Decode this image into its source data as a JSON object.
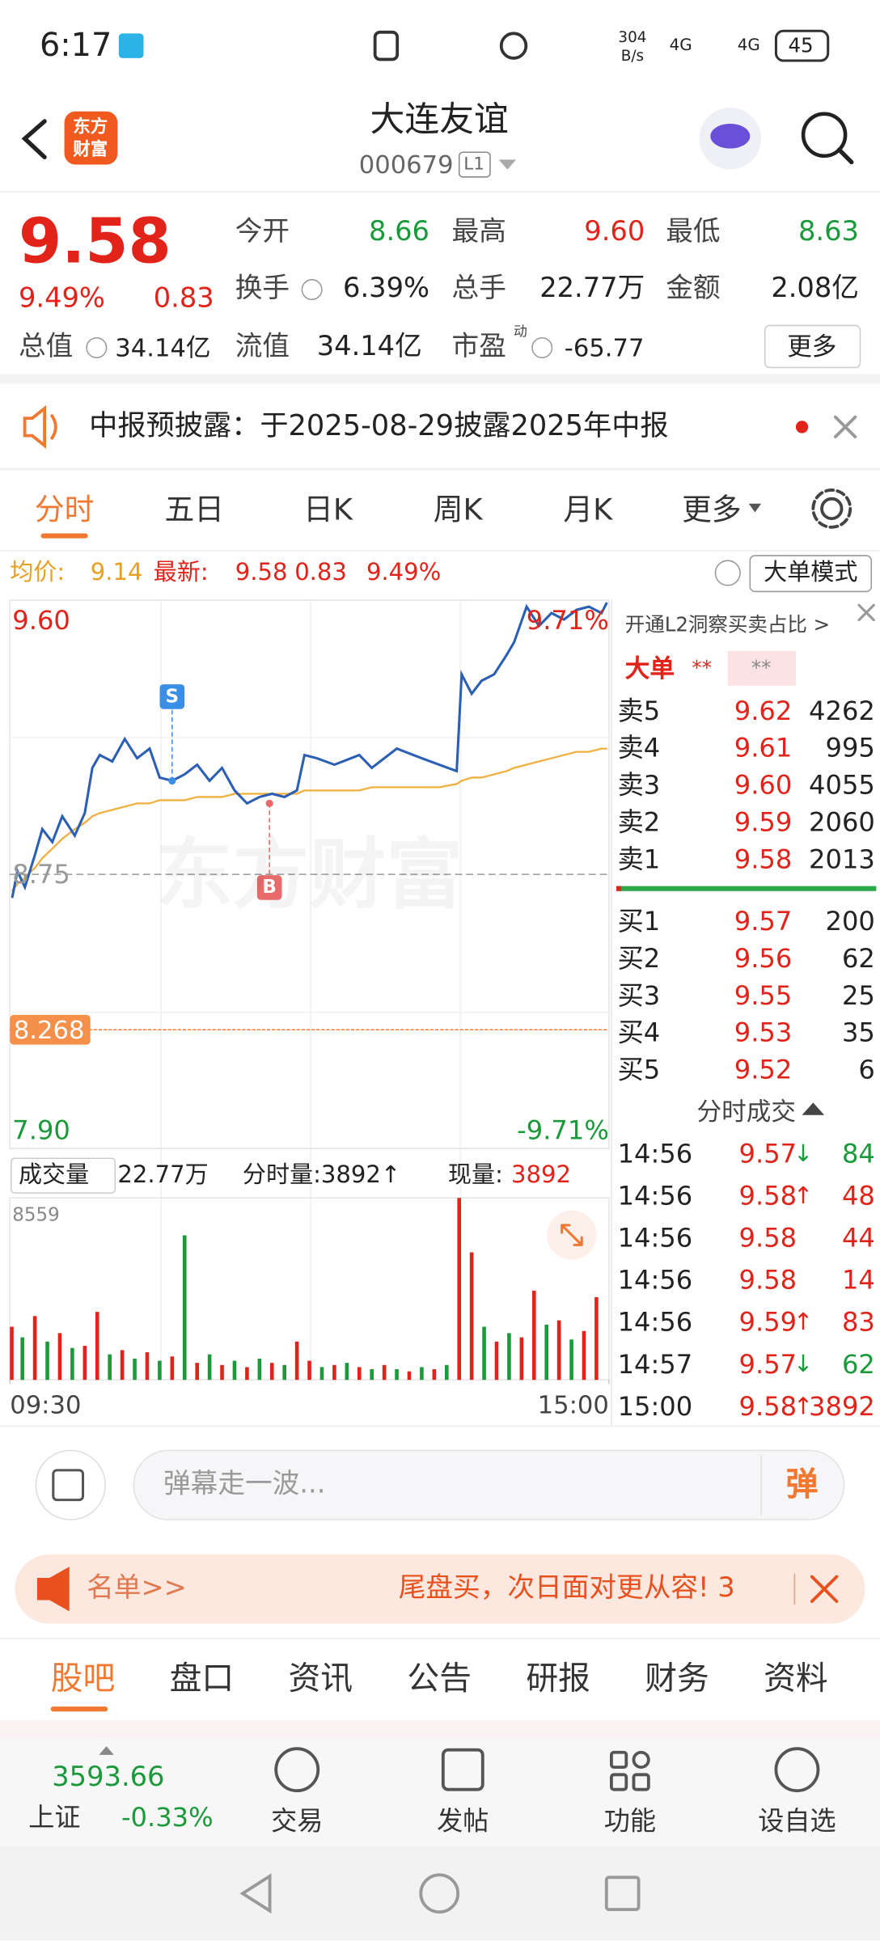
{
  "status_bar": {
    "time": "6:17",
    "speed": "304",
    "speed_unit": "B/s",
    "network": [
      "4G",
      "4G"
    ],
    "battery": "45"
  },
  "header": {
    "logo": [
      "东方",
      "财富"
    ],
    "title": "大连友谊",
    "code": "000679",
    "level": "L1"
  },
  "quote": {
    "price": "9.58",
    "change_pct": "9.49%",
    "change": "0.83",
    "market_cap_label": "总值",
    "market_cap": "34.14亿",
    "fields": [
      {
        "label": "今开",
        "value": "8.66"
      },
      {
        "label": "最高",
        "value": "9.60"
      },
      {
        "label": "最低",
        "value": "8.63"
      },
      {
        "label": "换手",
        "value": "6.39%"
      },
      {
        "label": "总手",
        "value": "22.77万"
      },
      {
        "label": "金额",
        "value": "2.08亿"
      },
      {
        "label": "流值",
        "value": "34.14亿"
      },
      {
        "label": "市盈",
        "value": "-65.77",
        "sup": "动"
      }
    ],
    "more": "更多"
  },
  "notice": {
    "text": "中报预披露：于2025-08-29披露2025年中报"
  },
  "tabs": [
    "分时",
    "五日",
    "日K",
    "周K",
    "月K",
    "更多"
  ],
  "info_bar": {
    "avg_label": "均价:",
    "avg": "9.14",
    "latest_label": "最新:",
    "latest": "9.58",
    "change": "0.83",
    "change_pct": "9.49%",
    "mode": "大单模式"
  },
  "chart_data": [
    {
      "type": "line",
      "watermark": "东方财富",
      "xlim": [
        0,
        240
      ],
      "ylim": [
        7.9,
        9.6
      ],
      "yticks": [
        {
          "value": 9.6,
          "label": "9.60"
        },
        8.75,
        {
          "value": 7.9,
          "label": "7.90"
        }
      ],
      "y2lim": [
        -9.71,
        9.71
      ],
      "y2ticks": [
        {
          "value": 9.71,
          "label": "9.71%"
        },
        {
          "value": -9.71,
          "label": "-9.71%"
        }
      ],
      "price_line": 8.268,
      "x": [
        1,
        3,
        6,
        10,
        13,
        17,
        21,
        26,
        30,
        33,
        36,
        41,
        46,
        51,
        56,
        60,
        65,
        70,
        75,
        80,
        85,
        90,
        95,
        100,
        105,
        110,
        115,
        118,
        123,
        130,
        140,
        145,
        155,
        165,
        172,
        179,
        181,
        185,
        189,
        194,
        199,
        202,
        207,
        212,
        217,
        222,
        227,
        232,
        237,
        239
      ],
      "series": [
        {
          "color": "#2b5fb4",
          "values": [
            8.68,
            8.76,
            8.71,
            8.81,
            8.89,
            8.85,
            8.93,
            8.87,
            8.94,
            9.08,
            9.12,
            9.1,
            9.17,
            9.11,
            9.14,
            9.05,
            9.04,
            9.06,
            9.09,
            9.04,
            9.08,
            9.01,
            8.97,
            8.99,
            9.0,
            8.99,
            9.01,
            9.12,
            9.11,
            9.09,
            9.12,
            9.08,
            9.14,
            9.11,
            9.09,
            9.07,
            9.37,
            9.31,
            9.35,
            9.37,
            9.43,
            9.47,
            9.58,
            9.52,
            9.56,
            9.54,
            9.57,
            9.58,
            9.56,
            9.59
          ]
        },
        {
          "color": "#f0b040",
          "values": [
            8.7,
            8.72,
            8.74,
            8.77,
            8.8,
            8.83,
            8.86,
            8.89,
            8.91,
            8.93,
            8.94,
            8.95,
            8.96,
            8.97,
            8.97,
            8.98,
            8.98,
            8.98,
            8.99,
            8.99,
            8.99,
            9.0,
            9.0,
            9.0,
            9.0,
            9.0,
            9.0,
            9.01,
            9.01,
            9.01,
            9.01,
            9.02,
            9.02,
            9.02,
            9.02,
            9.03,
            9.04,
            9.05,
            9.05,
            9.06,
            9.07,
            9.08,
            9.09,
            9.1,
            9.11,
            9.12,
            9.13,
            9.13,
            9.14,
            9.14
          ]
        }
      ],
      "annotations": [
        {
          "text": "S",
          "x": 65,
          "y": 9.04
        },
        {
          "text": "B",
          "x": 104,
          "y": 8.97
        }
      ]
    },
    {
      "type": "bar",
      "title": "成交量",
      "total": "22.77万",
      "period_volume": "分时量:3892↑",
      "current_label": "现量:",
      "current": 3892,
      "xlim": [
        0,
        240
      ],
      "xticks": [
        {
          "value": 0,
          "label": "09:30"
        },
        {
          "value": 240,
          "label": "15:00"
        }
      ],
      "ylim": [
        0,
        8559
      ],
      "yticks": [
        8559
      ],
      "x": [
        0,
        5,
        10,
        15,
        20,
        25,
        30,
        35,
        40,
        45,
        50,
        55,
        60,
        65,
        70,
        75,
        80,
        85,
        90,
        95,
        100,
        105,
        110,
        115,
        120,
        125,
        130,
        135,
        140,
        145,
        150,
        155,
        160,
        165,
        170,
        175,
        180,
        185,
        190,
        195,
        200,
        205,
        210,
        215,
        220,
        225,
        230,
        235
      ],
      "series": [
        {
          "color": "#e2231a",
          "values": [
            2500,
            null,
            3000,
            null,
            2200,
            null,
            1600,
            3200,
            null,
            1400,
            null,
            1300,
            null,
            1100,
            null,
            800,
            null,
            700,
            null,
            600,
            null,
            800,
            null,
            1800,
            900,
            null,
            700,
            null,
            600,
            null,
            700,
            null,
            400,
            null,
            500,
            null,
            8559,
            6000,
            null,
            1800,
            null,
            2000,
            4200,
            null,
            2800,
            null,
            2300,
            3892
          ]
        },
        {
          "color": "#1a9a3a",
          "values": [
            null,
            2000,
            null,
            1800,
            null,
            1500,
            null,
            null,
            1200,
            null,
            1000,
            null,
            900,
            null,
            6800,
            null,
            1200,
            null,
            900,
            null,
            1000,
            null,
            700,
            null,
            null,
            600,
            null,
            800,
            null,
            500,
            null,
            500,
            null,
            600,
            null,
            700,
            null,
            null,
            2500,
            null,
            2200,
            null,
            null,
            2600,
            null,
            1900,
            null,
            null
          ]
        }
      ]
    }
  ],
  "order_book": {
    "promo": "开通L2洞察买卖占比 >",
    "big_order": "大单",
    "masked": [
      "**",
      "**"
    ],
    "asks": [
      {
        "label": "卖5",
        "price": "9.62",
        "volume": "4262"
      },
      {
        "label": "卖4",
        "price": "9.61",
        "volume": "995"
      },
      {
        "label": "卖3",
        "price": "9.60",
        "volume": "4055"
      },
      {
        "label": "卖2",
        "price": "9.59",
        "volume": "2060"
      },
      {
        "label": "卖1",
        "price": "9.58",
        "volume": "2013"
      }
    ],
    "bids": [
      {
        "label": "买1",
        "price": "9.57",
        "volume": "200"
      },
      {
        "label": "买2",
        "price": "9.56",
        "volume": "62"
      },
      {
        "label": "买3",
        "price": "9.55",
        "volume": "25"
      },
      {
        "label": "买4",
        "price": "9.53",
        "volume": "35"
      },
      {
        "label": "买5",
        "price": "9.52",
        "volume": "6"
      }
    ]
  },
  "trades": {
    "title": "分时成交",
    "rows": [
      {
        "time": "14:56",
        "price": "9.57",
        "arrow": "↓",
        "volume": "84"
      },
      {
        "time": "14:56",
        "price": "9.58",
        "arrow": "↑",
        "volume": "48"
      },
      {
        "time": "14:56",
        "price": "9.58",
        "volume": "44"
      },
      {
        "time": "14:56",
        "price": "9.58",
        "volume": "14"
      },
      {
        "time": "14:56",
        "price": "9.59",
        "arrow": "↑",
        "volume": "83"
      },
      {
        "time": "14:57",
        "price": "9.57",
        "arrow": "↓",
        "volume": "62"
      },
      {
        "time": "15:00",
        "price": "9.58",
        "arrow": "↑",
        "volume": "3892"
      }
    ]
  },
  "comment": {
    "placeholder": "弹幕走一波...",
    "button": "弹"
  },
  "banner": {
    "tag": "名单>>",
    "text": "尾盘买，次日面对更从容! 3"
  },
  "sub_tabs": [
    "股吧",
    "盘口",
    "资讯",
    "公告",
    "研报",
    "财务",
    "资料"
  ],
  "index": {
    "value": "3593.66",
    "name": "上证",
    "change": "-0.33%"
  },
  "nav": [
    "交易",
    "发帖",
    "功能",
    "设自选"
  ]
}
